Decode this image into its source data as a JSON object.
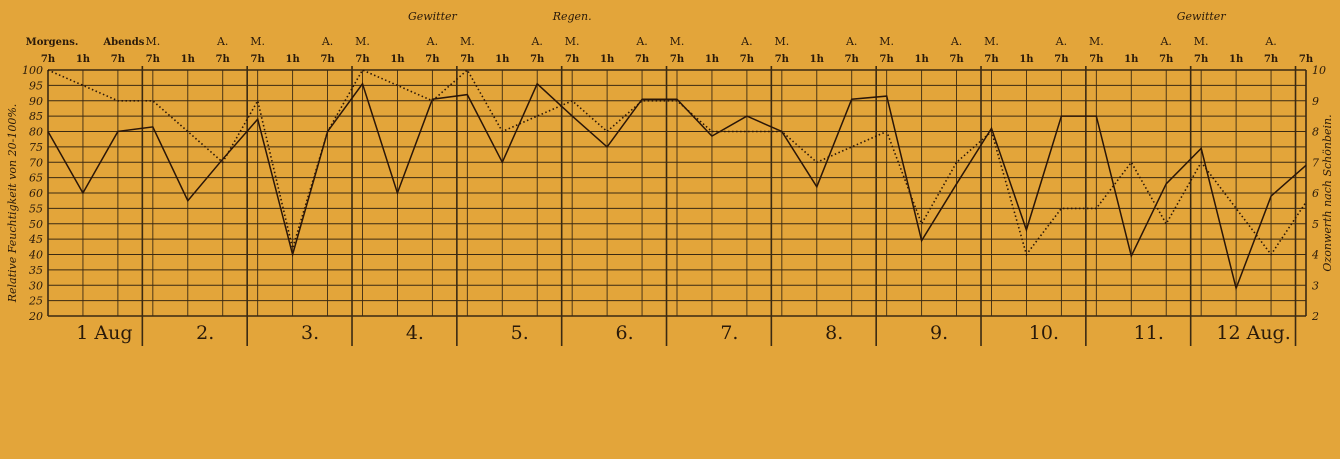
{
  "colors": {
    "background": "#e3a53a",
    "grid": "#3b2a12",
    "humidity_line": "#2a1608",
    "ozone_line": "#2a1608"
  },
  "chart_data": {
    "type": "line",
    "ylabel": "Relative Feuchtigkeit von 20-100%.",
    "y2label": "Ozonwerth nach Schönbein.",
    "ylim": [
      20,
      100
    ],
    "y2lim": [
      2,
      10
    ],
    "y_ticks": [
      "20",
      "25",
      "30",
      "35",
      "40",
      "45",
      "50",
      "55",
      "60",
      "65",
      "70",
      "75",
      "80",
      "85",
      "90",
      "95",
      "100"
    ],
    "y2_ticks": [
      "2",
      "3",
      "4",
      "5",
      "6",
      "7",
      "8",
      "9",
      "10"
    ],
    "time_labels": [
      "7h",
      "1h",
      "7h"
    ],
    "first_day_labels": [
      "Morgens.",
      "Abends"
    ],
    "ma_labels": [
      "M.",
      "A."
    ],
    "days": [
      "1 Aug",
      "2.",
      "3.",
      "4.",
      "5.",
      "6.",
      "7.",
      "8.",
      "9.",
      "10.",
      "11.",
      "12 Aug."
    ],
    "annotations": [
      {
        "text": "Gewitter",
        "index": 11
      },
      {
        "text": "Regen.",
        "index": 15
      },
      {
        "text": "Gewitter",
        "index": 33
      }
    ],
    "series": [
      {
        "style": "solid",
        "axis": "left",
        "values": [
          80,
          60,
          80,
          81.5,
          57.5,
          71,
          84,
          40,
          80,
          95.5,
          60,
          90.5,
          92,
          70,
          95.5,
          85,
          75,
          90.5,
          90.5,
          78.5,
          85,
          80,
          62,
          90.5,
          91.5,
          44.5,
          63,
          81,
          48,
          85,
          85,
          39.5,
          63,
          74.5,
          29,
          59,
          69
        ]
      },
      {
        "style": "dotted",
        "axis": "right",
        "values": [
          10,
          9.5,
          9,
          9,
          8,
          7,
          9,
          4.2,
          8,
          10,
          9.5,
          9,
          10,
          8,
          8.5,
          9,
          8,
          9,
          9,
          8,
          8,
          8,
          7,
          7.5,
          8,
          5,
          7,
          8,
          4,
          5.5,
          5.5,
          7,
          5,
          7,
          5.5,
          4,
          5.7
        ]
      }
    ]
  }
}
